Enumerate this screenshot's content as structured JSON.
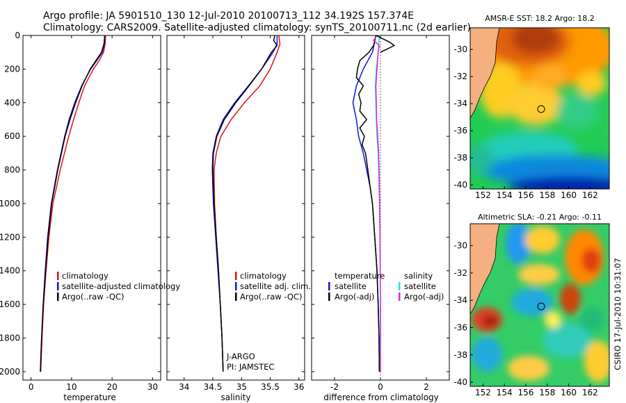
{
  "header": {
    "line1": "Argo profile: JA 5901510_130 12-Jul-2010 20100713_112 34.192S 157.374E",
    "line2": "Climatology: CARS2009. Satellite-adjusted climatology: synTS_20100711.nc (2d earlier)"
  },
  "colors": {
    "red": "#e01010",
    "blue": "#1010e0",
    "black": "#000000",
    "cyan": "#20e0e0",
    "magenta": "#e020e0",
    "land": "#f4b080"
  },
  "chart_data": [
    {
      "id": "temperature",
      "type": "line",
      "xlabel": "temperature",
      "ylabel": "",
      "xlim": [
        -2,
        32
      ],
      "ylim": [
        2050,
        0
      ],
      "y_reversed": true,
      "xticks": [
        0,
        10,
        20,
        30
      ],
      "xtick_labels": [
        "0",
        "10",
        "20",
        "30"
      ],
      "yticks": [
        0,
        200,
        400,
        600,
        800,
        1000,
        1200,
        1400,
        1600,
        1800,
        2000
      ],
      "ytick_labels": [
        "0",
        "200",
        "400",
        "600",
        "800",
        "1000",
        "1200",
        "1400",
        "1600",
        "1800",
        "2000"
      ],
      "legend": [
        "climatology",
        "satellite-adjusted climatology",
        "Argo(..raw -QC)"
      ],
      "series": [
        {
          "name": "climatology",
          "color": "red",
          "depth": [
            0,
            50,
            100,
            150,
            200,
            300,
            400,
            500,
            600,
            800,
            1000,
            1200,
            1400,
            1600,
            1800,
            2000
          ],
          "values": [
            18.4,
            18.3,
            17.9,
            16.8,
            15.4,
            13.2,
            11.8,
            10.5,
            9.3,
            7.2,
            5.4,
            4.4,
            3.7,
            3.1,
            2.7,
            2.4
          ]
        },
        {
          "name": "satellite-adjusted climatology",
          "color": "blue",
          "depth": [
            0,
            50,
            100,
            150,
            200,
            300,
            400,
            500,
            600,
            800,
            1000,
            1200,
            1400,
            1600,
            1800,
            2000
          ],
          "values": [
            18.2,
            18.1,
            17.6,
            16.2,
            14.7,
            12.5,
            10.8,
            9.4,
            8.3,
            6.5,
            5.0,
            4.1,
            3.5,
            3.0,
            2.6,
            2.3
          ]
        },
        {
          "name": "Argo(..raw -QC)",
          "color": "black",
          "depth": [
            0,
            50,
            100,
            150,
            200,
            300,
            400,
            500,
            600,
            800,
            1000,
            1200,
            1400,
            1600,
            1800,
            2000
          ],
          "values": [
            18.2,
            18.0,
            17.4,
            16.0,
            14.6,
            12.6,
            11.0,
            9.6,
            8.4,
            6.6,
            5.1,
            4.2,
            3.6,
            3.0,
            2.6,
            2.3
          ]
        }
      ]
    },
    {
      "id": "salinity",
      "type": "line",
      "xlabel": "salinity",
      "ylabel": "",
      "xlim": [
        33.7,
        36.1
      ],
      "ylim": [
        2050,
        0
      ],
      "y_reversed": true,
      "xticks": [
        34,
        34.5,
        35,
        35.5,
        36
      ],
      "xtick_labels": [
        "34",
        "34.5",
        "35",
        "35.5",
        "36"
      ],
      "legend": [
        "climatology",
        "satellite adj. clim.",
        "Argo(..raw -QC)"
      ],
      "annotation": [
        "J-ARGO",
        "PI: JAMSTEC"
      ],
      "series": [
        {
          "name": "climatology",
          "color": "red",
          "depth": [
            0,
            50,
            100,
            200,
            300,
            400,
            500,
            600,
            700,
            800,
            1000,
            1200,
            1400,
            1600,
            1800,
            2000
          ],
          "values": [
            35.65,
            35.67,
            35.62,
            35.5,
            35.32,
            35.05,
            34.82,
            34.64,
            34.56,
            34.52,
            34.53,
            34.56,
            34.6,
            34.63,
            34.66,
            34.68
          ]
        },
        {
          "name": "satellite adj. clim.",
          "color": "blue",
          "depth": [
            0,
            50,
            100,
            200,
            300,
            400,
            500,
            600,
            700,
            800,
            1000,
            1200,
            1400,
            1600,
            1800,
            2000
          ],
          "values": [
            35.62,
            35.62,
            35.55,
            35.35,
            35.12,
            34.88,
            34.68,
            34.56,
            34.5,
            34.49,
            34.51,
            34.55,
            34.59,
            34.63,
            34.66,
            34.68
          ]
        },
        {
          "name": "Argo(..raw -QC)",
          "color": "black",
          "depth": [
            0,
            30,
            60,
            100,
            200,
            300,
            400,
            500,
            600,
            700,
            800,
            1000,
            1200,
            1400,
            1600,
            1800,
            2000
          ],
          "values": [
            35.58,
            35.56,
            35.62,
            35.52,
            35.35,
            35.13,
            34.9,
            34.7,
            34.57,
            34.51,
            34.5,
            34.52,
            34.56,
            34.6,
            34.63,
            34.66,
            34.68
          ]
        }
      ]
    },
    {
      "id": "difference",
      "type": "line",
      "xlabel": "difference from climatology",
      "ylabel": "",
      "xlim": [
        -3,
        3
      ],
      "ylim": [
        2050,
        0
      ],
      "y_reversed": true,
      "xticks": [
        -2,
        0,
        2
      ],
      "xtick_labels": [
        "-2",
        "0",
        "2"
      ],
      "zero_line": true,
      "legend_headers": [
        "temperature",
        "salinity"
      ],
      "legend": [
        "satellite",
        "Argo(-adj)",
        "satellite",
        "Argo(-adj)"
      ],
      "series": [
        {
          "name": "temperature satellite",
          "color": "blue",
          "depth": [
            0,
            100,
            200,
            300,
            400,
            500,
            600,
            700,
            800,
            900,
            1000,
            1200,
            1400,
            1600,
            1800,
            2000
          ],
          "values": [
            -0.2,
            -0.35,
            -0.75,
            -1.05,
            -1.2,
            -1.05,
            -0.95,
            -0.75,
            -0.6,
            -0.45,
            -0.35,
            -0.25,
            -0.15,
            -0.1,
            -0.06,
            -0.05
          ]
        },
        {
          "name": "temperature Argo(-adj)",
          "color": "black",
          "depth": [
            0,
            60,
            100,
            150,
            200,
            250,
            300,
            350,
            400,
            450,
            500,
            550,
            600,
            650,
            700,
            800,
            900,
            1000,
            1200,
            1400,
            1600,
            1800,
            2000
          ],
          "values": [
            -0.2,
            -0.3,
            -0.5,
            -0.9,
            -1.0,
            -1.05,
            -0.75,
            -0.95,
            -0.85,
            -0.9,
            -0.6,
            -0.9,
            -0.7,
            -0.8,
            -0.65,
            -0.55,
            -0.45,
            -0.35,
            -0.25,
            -0.15,
            -0.1,
            -0.06,
            -0.05
          ]
        },
        {
          "name": "salinity satellite",
          "color": "cyan",
          "depth": [
            0,
            100,
            200,
            300,
            400,
            500,
            600,
            700,
            800,
            900,
            1000,
            1200,
            1400,
            1600,
            1800,
            2000
          ],
          "values": [
            -0.05,
            -0.1,
            -0.18,
            -0.22,
            -0.2,
            -0.18,
            -0.15,
            -0.1,
            -0.08,
            -0.06,
            -0.04,
            -0.02,
            -0.01,
            0.0,
            0.0,
            0.0
          ]
        },
        {
          "name": "salinity Argo(-adj)",
          "color": "magenta",
          "depth": [
            0,
            30,
            60,
            100,
            200,
            300,
            400,
            500,
            600,
            700,
            800,
            900,
            1000,
            1200,
            1400,
            1600,
            1800,
            2000
          ],
          "values": [
            -0.15,
            -0.3,
            -0.05,
            -0.1,
            -0.15,
            -0.2,
            -0.18,
            -0.17,
            -0.12,
            -0.08,
            -0.06,
            -0.05,
            -0.04,
            -0.02,
            -0.01,
            0.0,
            0.0,
            0.0
          ]
        },
        {
          "name": "Argo raw near surface",
          "color": "black",
          "depth": [
            0,
            20,
            40,
            60,
            80,
            100
          ],
          "values": [
            -0.2,
            0.1,
            0.4,
            0.6,
            0.3,
            0.0
          ]
        }
      ]
    }
  ],
  "maps": [
    {
      "title": "AMSR-E SST: 18.2 Argo: 18.2",
      "kind": "sst",
      "xticks": [
        152,
        154,
        156,
        158,
        160,
        162
      ],
      "yticks": [
        -30,
        -32,
        -34,
        -36,
        -38,
        -40
      ],
      "xtick_labels": [
        "152",
        "154",
        "156",
        "158",
        "160",
        "162"
      ],
      "ytick_labels": [
        "-30",
        "-32",
        "-34",
        "-36",
        "-38",
        "-40"
      ]
    },
    {
      "title": "Altimetric SLA: -0.21 Argo: -0.11",
      "kind": "sla",
      "xticks": [
        152,
        154,
        156,
        158,
        160,
        162
      ],
      "yticks": [
        -30,
        -32,
        -34,
        -36,
        -38,
        -40
      ],
      "xtick_labels": [
        "152",
        "154",
        "156",
        "158",
        "160",
        "162"
      ],
      "ytick_labels": [
        "-30",
        "-32",
        "-34",
        "-36",
        "-38",
        "-40"
      ]
    }
  ],
  "credit": "CSIRO 17-Jul-2010 10:31:07"
}
